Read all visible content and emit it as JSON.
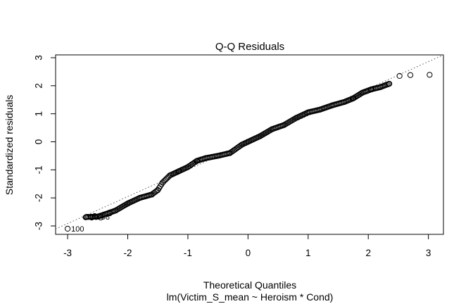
{
  "chart_data": {
    "type": "scatter",
    "title": "Q-Q Residuals",
    "xlabel": "Theoretical Quantiles",
    "ylabel": "Standardized residuals",
    "subtitle": "lm(Victim_S_mean ~ Heroism * Cond)",
    "xlim": [
      -3.2,
      3.25
    ],
    "ylim": [
      -3.3,
      3.1
    ],
    "x_ticks": [
      -3,
      -2,
      -1,
      0,
      1,
      2,
      3
    ],
    "y_ticks": [
      -3,
      -2,
      -1,
      0,
      1,
      2,
      3
    ],
    "reference_line": {
      "intercept": 0.06,
      "slope": 0.99,
      "style": "dotted"
    },
    "grid": false,
    "legend": "none",
    "profile": [
      [
        -3.0,
        -3.1
      ],
      [
        -2.69,
        -2.68
      ],
      [
        -2.5,
        -2.67
      ],
      [
        -2.4,
        -2.6
      ],
      [
        -2.2,
        -2.45
      ],
      [
        -2.0,
        -2.2
      ],
      [
        -1.8,
        -2.0
      ],
      [
        -1.6,
        -1.88
      ],
      [
        -1.5,
        -1.72
      ],
      [
        -1.42,
        -1.45
      ],
      [
        -1.3,
        -1.2
      ],
      [
        -1.15,
        -1.05
      ],
      [
        -1.0,
        -0.9
      ],
      [
        -0.85,
        -0.68
      ],
      [
        -0.7,
        -0.58
      ],
      [
        -0.5,
        -0.5
      ],
      [
        -0.3,
        -0.4
      ],
      [
        -0.1,
        -0.1
      ],
      [
        0.0,
        0.0
      ],
      [
        0.2,
        0.2
      ],
      [
        0.4,
        0.45
      ],
      [
        0.6,
        0.6
      ],
      [
        0.8,
        0.85
      ],
      [
        1.0,
        1.05
      ],
      [
        1.2,
        1.15
      ],
      [
        1.4,
        1.3
      ],
      [
        1.6,
        1.42
      ],
      [
        1.75,
        1.55
      ],
      [
        1.9,
        1.75
      ],
      [
        2.05,
        1.87
      ],
      [
        2.2,
        1.95
      ],
      [
        2.35,
        2.07
      ],
      [
        2.52,
        2.35
      ],
      [
        2.7,
        2.38
      ],
      [
        3.02,
        2.39
      ]
    ],
    "annotations": [
      {
        "text": "100",
        "x": -3.0,
        "y": -3.1
      },
      {
        "text": "39",
        "x": -2.69,
        "y": -2.68
      },
      {
        "text": "58",
        "x": -2.5,
        "y": -2.67
      }
    ]
  }
}
